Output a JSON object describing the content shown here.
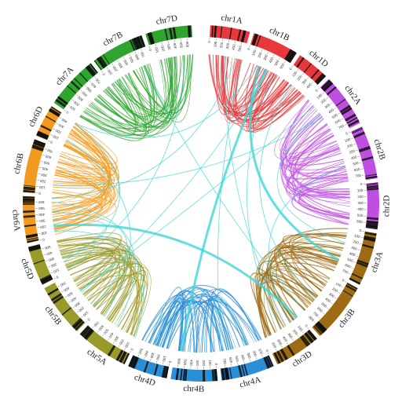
{
  "chromosomes": [
    {
      "label": "chr1A",
      "color": "#e8383b",
      "ticks": [
        0,
        100,
        200,
        300,
        400,
        500
      ]
    },
    {
      "label": "chr1B",
      "color": "#e8383b",
      "ticks": [
        0,
        100,
        200,
        300,
        400,
        500,
        600
      ]
    },
    {
      "label": "chr1D",
      "color": "#e8383b",
      "ticks": [
        0,
        100,
        200,
        300,
        400
      ]
    },
    {
      "label": "chr2A",
      "color": "#bf4fe0",
      "ticks": [
        0,
        100,
        200,
        300,
        400,
        500,
        600,
        700
      ]
    },
    {
      "label": "chr2B",
      "color": "#bf4fe0",
      "ticks": [
        0,
        100,
        200,
        300,
        400,
        500,
        600,
        700
      ]
    },
    {
      "label": "chr2D",
      "color": "#bf4fe0",
      "ticks": [
        0,
        100,
        200,
        300,
        400,
        500,
        600
      ]
    },
    {
      "label": "chr3A",
      "color": "#9c6b13",
      "ticks": [
        0,
        100,
        200,
        300,
        400,
        500,
        600,
        700
      ]
    },
    {
      "label": "chr3B",
      "color": "#9c6b13",
      "ticks": [
        0,
        100,
        200,
        300,
        400,
        500,
        600,
        700,
        800
      ]
    },
    {
      "label": "chr3D",
      "color": "#9c6b13",
      "ticks": [
        0,
        100,
        200,
        300,
        400,
        500,
        600
      ]
    },
    {
      "label": "chr4A",
      "color": "#2a8fd6",
      "ticks": [
        0,
        100,
        200,
        300,
        400,
        500,
        600,
        700
      ]
    },
    {
      "label": "chr4B",
      "color": "#2a8fd6",
      "ticks": [
        0,
        100,
        200,
        300,
        400,
        500,
        600
      ]
    },
    {
      "label": "chr4D",
      "color": "#2a8fd6",
      "ticks": [
        0,
        100,
        200,
        300,
        400,
        500
      ]
    },
    {
      "label": "chr5A",
      "color": "#9a9a2a",
      "ticks": [
        0,
        100,
        200,
        300,
        400,
        500,
        600,
        700
      ]
    },
    {
      "label": "chr5B",
      "color": "#9a9a2a",
      "ticks": [
        0,
        100,
        200,
        300,
        400,
        500,
        600,
        700
      ]
    },
    {
      "label": "chr5D",
      "color": "#9a9a2a",
      "ticks": [
        0,
        100,
        200,
        300,
        400,
        500
      ]
    },
    {
      "label": "chr6A",
      "color": "#f39a1e",
      "ticks": [
        0,
        100,
        200,
        300,
        400,
        500,
        600
      ]
    },
    {
      "label": "chr6B",
      "color": "#f39a1e",
      "ticks": [
        0,
        100,
        200,
        300,
        400,
        500,
        600,
        700
      ]
    },
    {
      "label": "chr6D",
      "color": "#f39a1e",
      "ticks": [
        0,
        100,
        200,
        300,
        400
      ]
    },
    {
      "label": "chr7A",
      "color": "#2fa52f",
      "ticks": [
        0,
        100,
        200,
        300,
        400,
        500,
        600,
        700
      ]
    },
    {
      "label": "chr7B",
      "color": "#2fa52f",
      "ticks": [
        0,
        100,
        200,
        300,
        400,
        500,
        600,
        700
      ]
    },
    {
      "label": "chr7D",
      "color": "#2fa52f",
      "ticks": [
        0,
        100,
        200,
        300,
        400,
        500,
        600
      ]
    }
  ]
}
